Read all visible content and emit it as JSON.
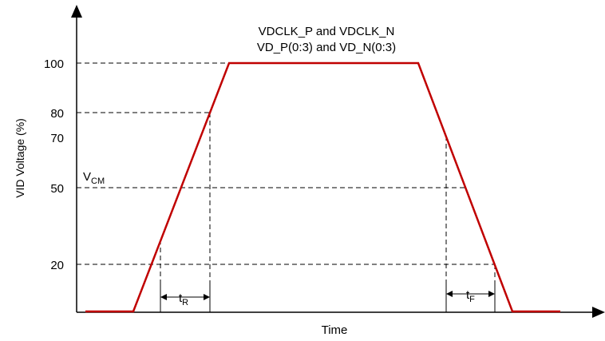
{
  "title_line1": "VDCLK_P and VDCLK_N",
  "title_line2": "VD_P(0:3)  and VD_N(0:3)",
  "ylabel": "VID Voltage (%)",
  "xlabel": "Time",
  "y_ticks": [
    "100",
    "80",
    "70",
    "50",
    "20"
  ],
  "vcm": {
    "main": "V",
    "sub": "CM"
  },
  "t_rise": {
    "main": "t",
    "sub": "R"
  },
  "t_fall": {
    "main": "t",
    "sub": "F"
  },
  "colors": {
    "waveform": "#c00000",
    "axis": "#000000",
    "guide": "#000000"
  }
}
